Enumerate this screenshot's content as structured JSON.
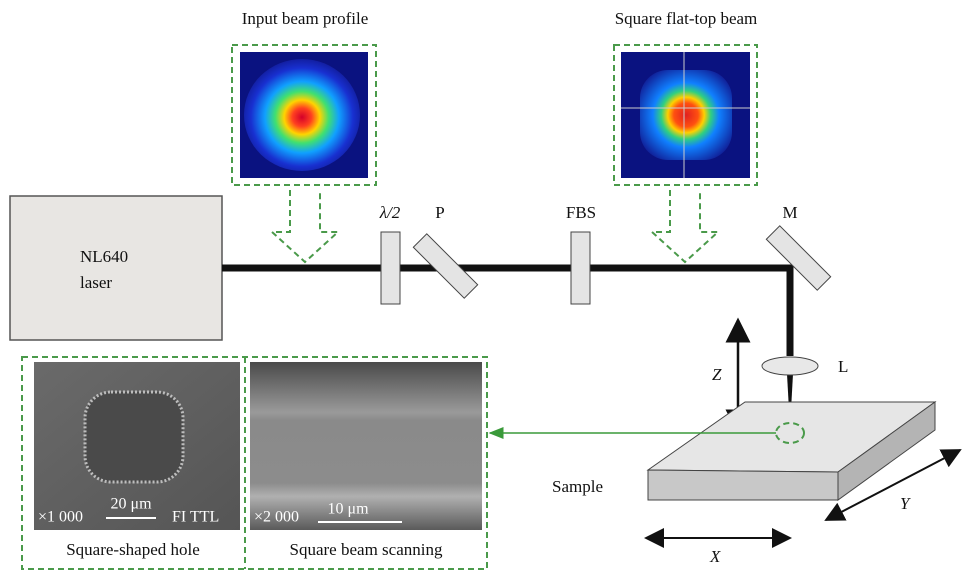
{
  "insets": {
    "input_profile": {
      "label": "Input beam profile"
    },
    "flat_top": {
      "label": "Square flat-top beam"
    }
  },
  "laser": {
    "lines": [
      "NL640",
      "laser"
    ]
  },
  "optics": {
    "half_wave": "λ/2",
    "polarizer": "P",
    "fbs": "FBS",
    "mirror": "M",
    "lens": "L"
  },
  "axes": {
    "x": "X",
    "y": "Y",
    "z": "Z"
  },
  "sample": "Sample",
  "micrographs": [
    {
      "magnification": "×1 000",
      "scale": "20 μm",
      "detector": "FI TTL",
      "caption": "Square-shaped hole"
    },
    {
      "magnification": "×2 000",
      "scale": "10 μm",
      "caption": "Square beam scanning"
    }
  ]
}
